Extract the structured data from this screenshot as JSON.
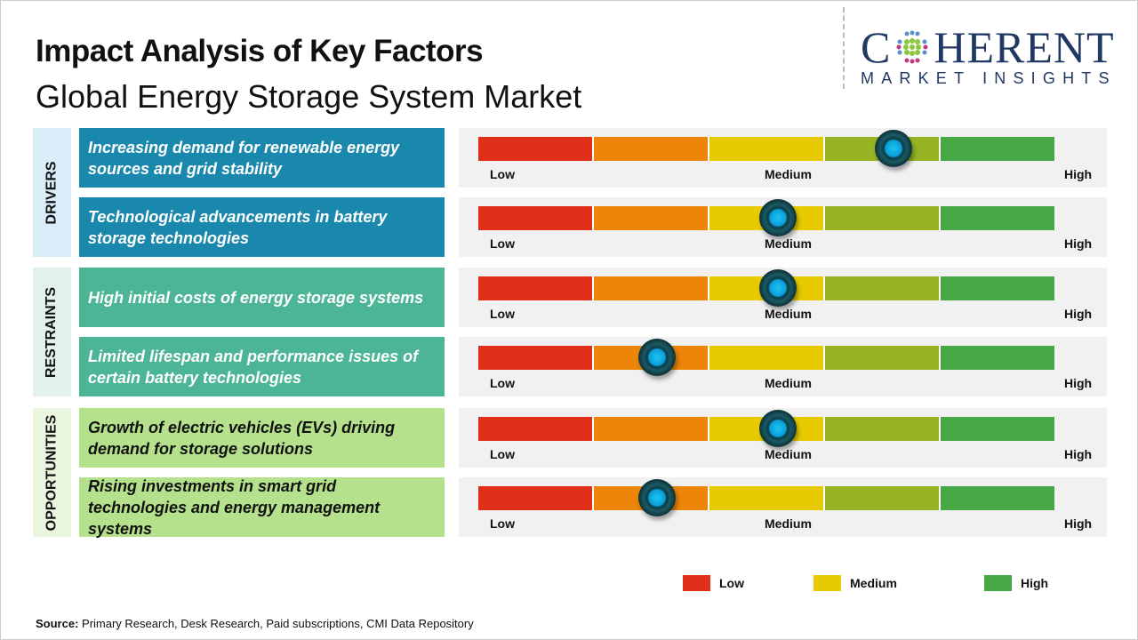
{
  "title": "Impact Analysis of Key Factors",
  "subtitle": "Global Energy Storage System Market",
  "logo": {
    "main_left": "C",
    "main_right": "HERENT",
    "tagline": "MARKET INSIGHTS"
  },
  "colors": {
    "low": "#e03019",
    "low_med": "#ec8508",
    "medium": "#e7cb00",
    "med_high": "#96b424",
    "high": "#46a745",
    "drivers": "#1a88ad",
    "restraints": "#4bb595",
    "opportunities": "#b6e18c"
  },
  "groups": [
    {
      "label": "DRIVERS"
    },
    {
      "label": "RESTRAINTS"
    },
    {
      "label": "OPPORTUNITIES"
    }
  ],
  "scale_labels": {
    "low": "Low",
    "medium": "Medium",
    "high": "High"
  },
  "chart_data": {
    "type": "gauge-table",
    "title": "Impact Analysis of Key Factors",
    "scale": [
      "Low",
      "Medium",
      "High"
    ],
    "scale_range": [
      0,
      1
    ],
    "factors": [
      {
        "group": "DRIVERS",
        "text": "Increasing demand for renewable energy sources and grid stability",
        "impact": 0.72
      },
      {
        "group": "DRIVERS",
        "text": "Technological advancements in battery storage technologies",
        "impact": 0.52
      },
      {
        "group": "RESTRAINTS",
        "text": "High initial costs of energy storage systems",
        "impact": 0.52
      },
      {
        "group": "RESTRAINTS",
        "text": "Limited lifespan and performance issues of certain battery technologies",
        "impact": 0.31
      },
      {
        "group": "OPPORTUNITIES",
        "text": "Growth of electric vehicles (EVs) driving demand for storage solutions",
        "impact": 0.52
      },
      {
        "group": "OPPORTUNITIES",
        "text": "Rising investments in smart grid technologies and energy management systems",
        "impact": 0.31
      }
    ],
    "legend": [
      {
        "label": "Low",
        "color": "#e03019"
      },
      {
        "label": "Medium",
        "color": "#e7cb00"
      },
      {
        "label": "High",
        "color": "#46a745"
      }
    ]
  },
  "source": {
    "label": "Source:",
    "text": " Primary Research, Desk Research, Paid subscriptions, CMI Data Repository"
  }
}
